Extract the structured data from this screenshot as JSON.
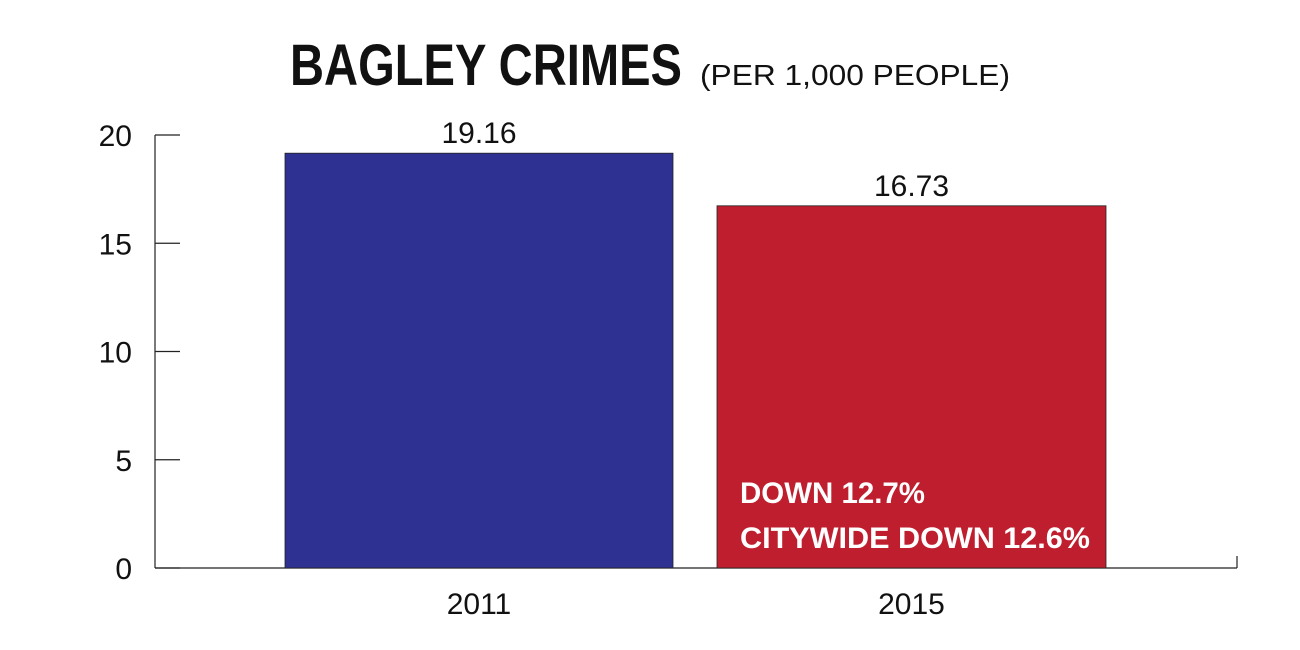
{
  "chart_data": {
    "type": "bar",
    "title": "BAGLEY CRIMES",
    "subtitle": "(PER 1,000 PEOPLE)",
    "categories": [
      "2011",
      "2015"
    ],
    "values": [
      19.16,
      16.73
    ],
    "colors": [
      "#2e3192",
      "#be1e2d"
    ],
    "ylim": [
      0,
      20
    ],
    "yticks": [
      0,
      5,
      10,
      15,
      20
    ],
    "annotations": [
      "DOWN 12.7%",
      "CITYWIDE DOWN 12.6%"
    ]
  }
}
